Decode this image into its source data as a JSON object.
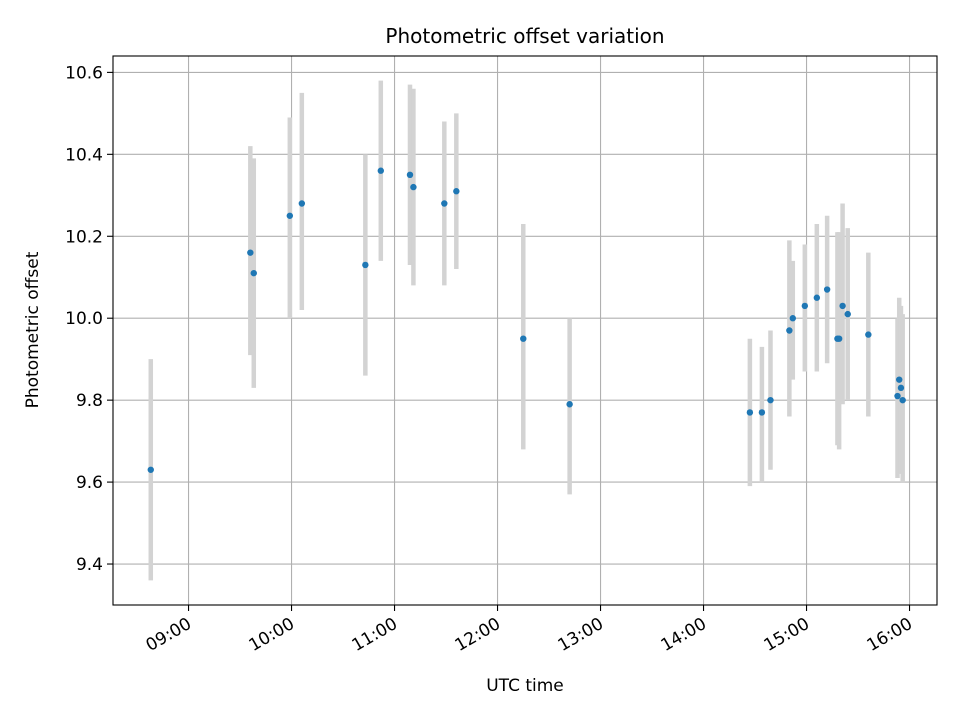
{
  "chart_data": {
    "type": "scatter",
    "title": "Photometric offset variation",
    "xlabel": "UTC time",
    "ylabel": "Photometric offset",
    "xlim": [
      "08:16",
      "16:16"
    ],
    "ylim": [
      9.3,
      10.64
    ],
    "xticks": [
      "09:00",
      "10:00",
      "11:00",
      "12:00",
      "13:00",
      "14:00",
      "15:00",
      "16:00"
    ],
    "yticks": [
      9.4,
      9.6,
      9.8,
      10.0,
      10.2,
      10.4,
      10.6
    ],
    "ytick_labels": [
      "9.4",
      "9.6",
      "9.8",
      "10.0",
      "10.2",
      "10.4",
      "10.6"
    ],
    "grid": true,
    "colors": {
      "marker": "#1f77b4",
      "errorbar": "#d3d3d3",
      "grid": "#b0b0b0"
    },
    "points": [
      {
        "x": "08:38",
        "y": 9.63,
        "yerr_low": 9.36,
        "yerr_high": 9.9
      },
      {
        "x": "09:36",
        "y": 10.16,
        "yerr_low": 9.91,
        "yerr_high": 10.42
      },
      {
        "x": "09:38",
        "y": 10.11,
        "yerr_low": 9.83,
        "yerr_high": 10.39
      },
      {
        "x": "09:59",
        "y": 10.25,
        "yerr_low": 10.0,
        "yerr_high": 10.49
      },
      {
        "x": "10:06",
        "y": 10.28,
        "yerr_low": 10.02,
        "yerr_high": 10.55
      },
      {
        "x": "10:43",
        "y": 10.13,
        "yerr_low": 9.86,
        "yerr_high": 10.4
      },
      {
        "x": "10:52",
        "y": 10.36,
        "yerr_low": 10.14,
        "yerr_high": 10.58
      },
      {
        "x": "11:09",
        "y": 10.35,
        "yerr_low": 10.13,
        "yerr_high": 10.57
      },
      {
        "x": "11:11",
        "y": 10.32,
        "yerr_low": 10.08,
        "yerr_high": 10.56
      },
      {
        "x": "11:29",
        "y": 10.28,
        "yerr_low": 10.08,
        "yerr_high": 10.48
      },
      {
        "x": "11:36",
        "y": 10.31,
        "yerr_low": 10.12,
        "yerr_high": 10.5
      },
      {
        "x": "12:15",
        "y": 9.95,
        "yerr_low": 9.68,
        "yerr_high": 10.23
      },
      {
        "x": "12:42",
        "y": 9.79,
        "yerr_low": 9.57,
        "yerr_high": 10.0
      },
      {
        "x": "14:27",
        "y": 9.77,
        "yerr_low": 9.59,
        "yerr_high": 9.95
      },
      {
        "x": "14:34",
        "y": 9.77,
        "yerr_low": 9.6,
        "yerr_high": 9.93
      },
      {
        "x": "14:39",
        "y": 9.8,
        "yerr_low": 9.63,
        "yerr_high": 9.97
      },
      {
        "x": "14:50",
        "y": 9.97,
        "yerr_low": 9.76,
        "yerr_high": 10.19
      },
      {
        "x": "14:52",
        "y": 10.0,
        "yerr_low": 9.85,
        "yerr_high": 10.14
      },
      {
        "x": "14:59",
        "y": 10.03,
        "yerr_low": 9.87,
        "yerr_high": 10.18
      },
      {
        "x": "15:06",
        "y": 10.05,
        "yerr_low": 9.87,
        "yerr_high": 10.23
      },
      {
        "x": "15:12",
        "y": 10.07,
        "yerr_low": 9.89,
        "yerr_high": 10.25
      },
      {
        "x": "15:18",
        "y": 9.95,
        "yerr_low": 9.69,
        "yerr_high": 10.21
      },
      {
        "x": "15:19",
        "y": 9.95,
        "yerr_low": 9.68,
        "yerr_high": 10.21
      },
      {
        "x": "15:21",
        "y": 10.03,
        "yerr_low": 9.79,
        "yerr_high": 10.28
      },
      {
        "x": "15:24",
        "y": 10.01,
        "yerr_low": 9.8,
        "yerr_high": 10.22
      },
      {
        "x": "15:36",
        "y": 9.96,
        "yerr_low": 9.76,
        "yerr_high": 10.16
      },
      {
        "x": "15:53",
        "y": 9.81,
        "yerr_low": 9.61,
        "yerr_high": 10.0
      },
      {
        "x": "15:54",
        "y": 9.85,
        "yerr_low": 9.66,
        "yerr_high": 10.05
      },
      {
        "x": "15:55",
        "y": 9.83,
        "yerr_low": 9.62,
        "yerr_high": 10.03
      },
      {
        "x": "15:56",
        "y": 9.8,
        "yerr_low": 9.6,
        "yerr_high": 10.01
      }
    ]
  }
}
